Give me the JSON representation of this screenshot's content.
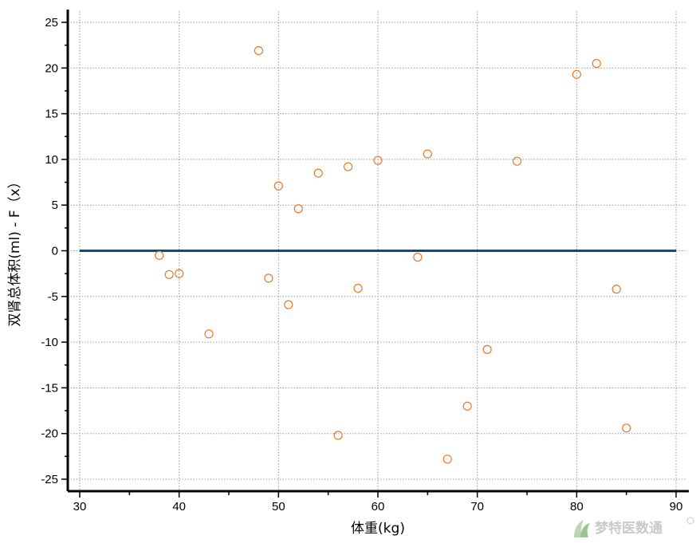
{
  "chart_data": {
    "type": "scatter",
    "xlabel": "体重(kg)",
    "ylabel": "双肾总体积(ml) - F（x）",
    "xlim": [
      30,
      90
    ],
    "ylim": [
      -25,
      25
    ],
    "xticks": [
      30,
      40,
      50,
      60,
      70,
      80,
      90
    ],
    "yticks": [
      25,
      20,
      15,
      10,
      5,
      0,
      -5,
      -10,
      -15,
      -20,
      -25
    ],
    "xtick_labels": [
      "30",
      "40",
      "50",
      "60",
      "70",
      "80",
      "90"
    ],
    "ytick_labels": [
      "25",
      "20",
      "15",
      "10",
      "5",
      "0",
      "-5",
      "-10",
      "-15",
      "-20",
      "-25"
    ],
    "grid": true,
    "reference_line": {
      "y": 0,
      "color": "#0b4a8b"
    },
    "point_color": "#e8792a",
    "points": [
      {
        "x": 38,
        "y": -0.5
      },
      {
        "x": 39,
        "y": -2.6
      },
      {
        "x": 40,
        "y": -2.5
      },
      {
        "x": 43,
        "y": -9.1
      },
      {
        "x": 48,
        "y": 21.9
      },
      {
        "x": 49,
        "y": -3.0
      },
      {
        "x": 50,
        "y": 7.1
      },
      {
        "x": 51,
        "y": -5.9
      },
      {
        "x": 52,
        "y": 4.6
      },
      {
        "x": 54,
        "y": 8.5
      },
      {
        "x": 56,
        "y": -20.2
      },
      {
        "x": 57,
        "y": 9.2
      },
      {
        "x": 58,
        "y": -4.1
      },
      {
        "x": 60,
        "y": 9.9
      },
      {
        "x": 64,
        "y": -0.7
      },
      {
        "x": 65,
        "y": 10.6
      },
      {
        "x": 67,
        "y": -22.8
      },
      {
        "x": 69,
        "y": -17.0
      },
      {
        "x": 71,
        "y": -10.8
      },
      {
        "x": 74,
        "y": 9.8
      },
      {
        "x": 80,
        "y": 19.3
      },
      {
        "x": 82,
        "y": 20.5
      },
      {
        "x": 84,
        "y": -4.2
      },
      {
        "x": 85,
        "y": -19.4
      }
    ]
  },
  "watermark": {
    "text": "梦特医数通",
    "color": "#c9c9c9",
    "icon": "plant-logo-icon"
  }
}
